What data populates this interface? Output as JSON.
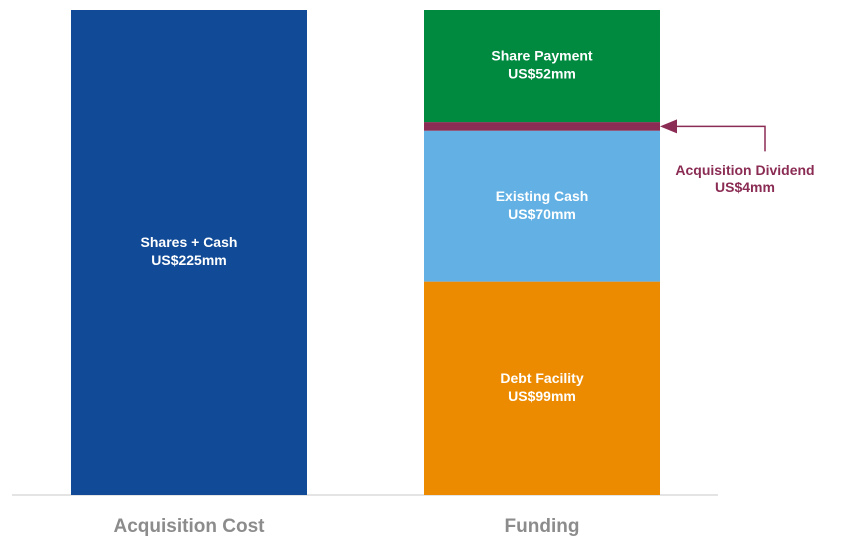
{
  "chart_data": {
    "type": "stacked_bar",
    "categories": [
      "Acquisition Cost",
      "Funding"
    ],
    "series": [
      {
        "name": "Shares + Cash",
        "color": "#114a96",
        "values": [
          225,
          null
        ],
        "value_labels": [
          "US$225mm",
          null
        ]
      },
      {
        "name": "Debt Facility",
        "color": "#ec8b00",
        "values": [
          null,
          99
        ],
        "value_labels": [
          null,
          "US$99mm"
        ]
      },
      {
        "name": "Existing Cash",
        "color": "#63b1e4",
        "values": [
          null,
          70
        ],
        "value_labels": [
          null,
          "US$70mm"
        ]
      },
      {
        "name": "Acquisition Dividend",
        "color": "#8b2c54",
        "values": [
          null,
          4
        ],
        "value_labels": [
          null,
          "US$4mm"
        ]
      },
      {
        "name": "Share Payment",
        "color": "#008a40",
        "values": [
          null,
          52
        ],
        "value_labels": [
          null,
          "US$52mm"
        ]
      }
    ]
  }
}
